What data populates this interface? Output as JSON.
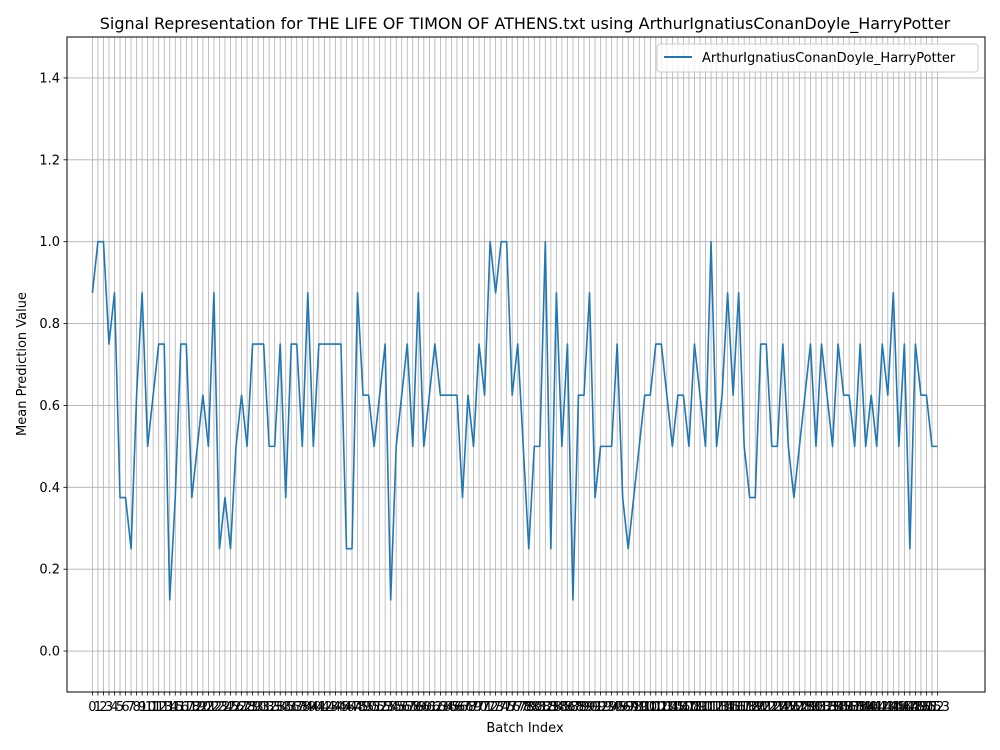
{
  "chart_data": {
    "type": "line",
    "title": "Signal Representation for THE LIFE OF TIMON OF ATHENS.txt using ArthurIgnatiusConanDoyle_HarryPotter",
    "xlabel": "Batch Index",
    "ylabel": "Mean Prediction Value",
    "xlim": [
      -4.6,
      161.6
    ],
    "ylim": [
      -0.1,
      1.5
    ],
    "yticks": [
      0.0,
      0.2,
      0.4,
      0.6,
      0.8,
      1.0,
      1.2,
      1.4
    ],
    "ytick_labels": [
      "0.0",
      "0.2",
      "0.4",
      "0.6",
      "0.8",
      "1.0",
      "1.2",
      "1.4"
    ],
    "xtick_labels": [
      "0",
      "1",
      "2",
      "3",
      "4",
      "5",
      "6",
      "7",
      "8",
      "9",
      "10",
      "11",
      "12",
      "13",
      "14",
      "15",
      "16",
      "17",
      "18",
      "19",
      "20",
      "21",
      "22",
      "23",
      "24",
      "25",
      "26",
      "27",
      "28",
      "29",
      "30",
      "31",
      "32",
      "33",
      "34",
      "35",
      "36",
      "37",
      "38",
      "39",
      "40",
      "41",
      "42",
      "43",
      "44",
      "45",
      "46",
      "47",
      "48",
      "49",
      "50",
      "51",
      "52",
      "53",
      "54",
      "55",
      "56",
      "57",
      "58",
      "59",
      "60",
      "61",
      "62",
      "63",
      "64",
      "65",
      "66",
      "67",
      "68",
      "69",
      "70",
      "71",
      "72",
      "73",
      "74",
      "75",
      "76",
      "77",
      "78",
      "79",
      "80",
      "81",
      "82",
      "83",
      "84",
      "85",
      "86",
      "87",
      "88",
      "89",
      "90",
      "91",
      "92",
      "93",
      "94",
      "95",
      "96",
      "97",
      "98",
      "99",
      "100",
      "101",
      "102",
      "103",
      "104",
      "105",
      "106",
      "107",
      "108",
      "109",
      "110",
      "111",
      "112",
      "113",
      "114",
      "115",
      "116",
      "117",
      "118",
      "119",
      "120",
      "121",
      "122",
      "123",
      "124",
      "125",
      "126",
      "127",
      "128",
      "129",
      "130",
      "131",
      "132",
      "133",
      "134",
      "135",
      "136",
      "137",
      "138",
      "139",
      "140",
      "141",
      "142",
      "143",
      "144",
      "145",
      "146",
      "147",
      "148",
      "149",
      "150",
      "151",
      "152",
      "153"
    ],
    "grid": true,
    "legend_position": "top-right",
    "color": "#1f77b4",
    "series": [
      {
        "name": "ArthurIgnatiusConanDoyle_HarryPotter",
        "values": [
          0.875,
          1.0,
          1.0,
          0.75,
          0.875,
          0.375,
          0.375,
          0.25,
          0.625,
          0.875,
          0.5,
          0.625,
          0.75,
          0.75,
          0.125,
          0.375,
          0.75,
          0.75,
          0.375,
          0.5,
          0.625,
          0.5,
          0.875,
          0.25,
          0.375,
          0.25,
          0.5,
          0.625,
          0.5,
          0.75,
          0.75,
          0.75,
          0.5,
          0.5,
          0.75,
          0.375,
          0.75,
          0.75,
          0.5,
          0.875,
          0.5,
          0.75,
          0.75,
          0.75,
          0.75,
          0.75,
          0.25,
          0.25,
          0.875,
          0.625,
          0.625,
          0.5,
          0.625,
          0.75,
          0.125,
          0.5,
          0.625,
          0.75,
          0.5,
          0.875,
          0.5,
          0.625,
          0.75,
          0.625,
          0.625,
          0.625,
          0.625,
          0.375,
          0.625,
          0.5,
          0.75,
          0.625,
          1.0,
          0.875,
          1.0,
          1.0,
          0.625,
          0.75,
          0.5,
          0.25,
          0.5,
          0.5,
          1.0,
          0.25,
          0.875,
          0.5,
          0.75,
          0.125,
          0.625,
          0.625,
          0.875,
          0.375,
          0.5,
          0.5,
          0.5,
          0.75,
          0.375,
          0.25,
          0.375,
          0.5,
          0.625,
          0.625,
          0.75,
          0.75,
          0.625,
          0.5,
          0.625,
          0.625,
          0.5,
          0.75,
          0.625,
          0.5,
          1.0,
          0.5,
          0.625,
          0.875,
          0.625,
          0.875,
          0.5,
          0.375,
          0.375,
          0.75,
          0.75,
          0.5,
          0.5,
          0.75,
          0.5,
          0.375,
          0.5,
          0.625,
          0.75,
          0.5,
          0.75,
          0.625,
          0.5,
          0.75,
          0.625,
          0.625,
          0.5,
          0.75,
          0.5,
          0.625,
          0.5,
          0.75,
          0.625,
          0.875,
          0.5,
          0.75,
          0.25,
          0.75,
          0.625,
          0.625,
          0.5,
          0.5
        ]
      }
    ]
  }
}
